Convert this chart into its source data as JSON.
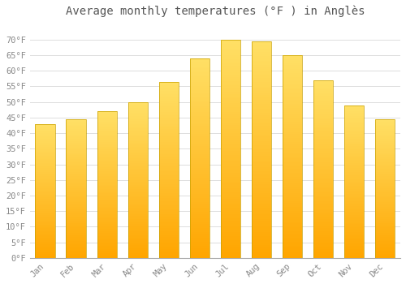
{
  "title": "Average monthly temperatures (°F ) in Anglès",
  "months": [
    "Jan",
    "Feb",
    "Mar",
    "Apr",
    "May",
    "Jun",
    "Jul",
    "Aug",
    "Sep",
    "Oct",
    "Nov",
    "Dec"
  ],
  "values": [
    43,
    44.5,
    47,
    50,
    56.5,
    64,
    70,
    69.5,
    65,
    57,
    49,
    44.5
  ],
  "bar_color_bright": "#FFA500",
  "bar_color_light": "#FFD966",
  "bar_border_color": "#B8860B",
  "ylim": [
    0,
    75
  ],
  "yticks": [
    0,
    5,
    10,
    15,
    20,
    25,
    30,
    35,
    40,
    45,
    50,
    55,
    60,
    65,
    70
  ],
  "ytick_labels": [
    "0°F",
    "5°F",
    "10°F",
    "15°F",
    "20°F",
    "25°F",
    "30°F",
    "35°F",
    "40°F",
    "45°F",
    "50°F",
    "55°F",
    "60°F",
    "65°F",
    "70°F"
  ],
  "background_color": "#ffffff",
  "grid_color": "#dddddd",
  "title_fontsize": 10,
  "tick_fontsize": 7.5,
  "bar_width": 0.65
}
